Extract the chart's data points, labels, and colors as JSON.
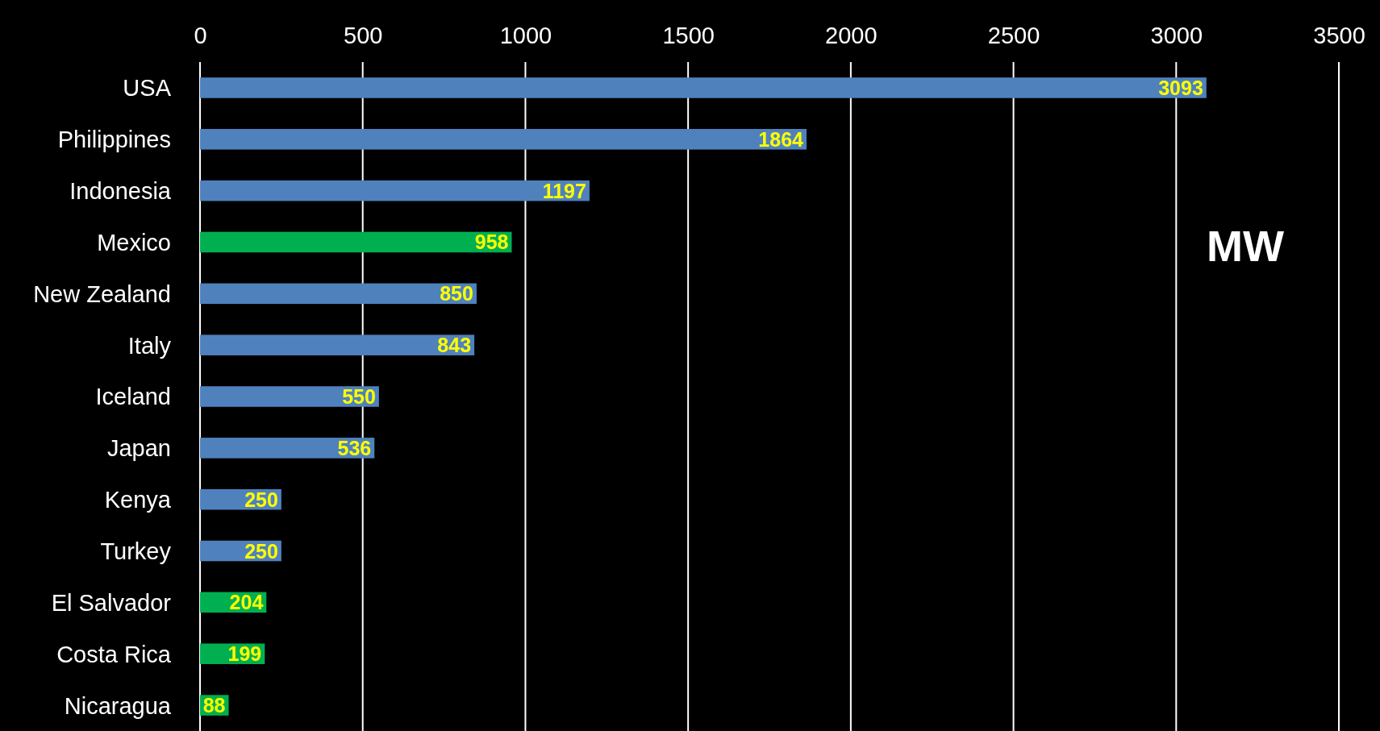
{
  "chart_data": {
    "type": "bar",
    "orientation": "horizontal",
    "categories": [
      "USA",
      "Philippines",
      "Indonesia",
      "Mexico",
      "New Zealand",
      "Italy",
      "Iceland",
      "Japan",
      "Kenya",
      "Turkey",
      "El Salvador",
      "Costa Rica",
      "Nicaragua"
    ],
    "values": [
      3093,
      1864,
      1197,
      958,
      850,
      843,
      550,
      536,
      250,
      250,
      204,
      199,
      88
    ],
    "colors": [
      "#4f81bd",
      "#4f81bd",
      "#4f81bd",
      "#00b050",
      "#4f81bd",
      "#4f81bd",
      "#4f81bd",
      "#4f81bd",
      "#4f81bd",
      "#4f81bd",
      "#00b050",
      "#00b050",
      "#00b050"
    ],
    "xlim": [
      0,
      3500
    ],
    "xticks": [
      0,
      500,
      1000,
      1500,
      2000,
      2500,
      3000,
      3500
    ],
    "grid": true,
    "data_labels": true,
    "annotations": [
      "MW"
    ]
  }
}
